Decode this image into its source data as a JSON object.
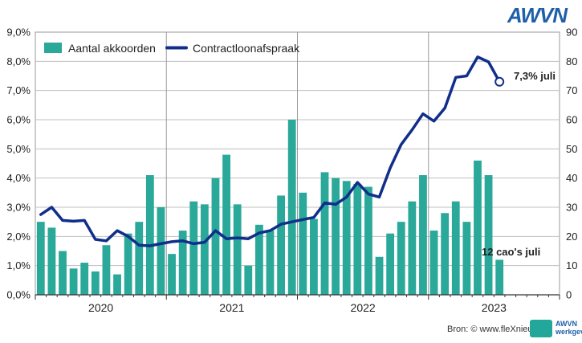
{
  "brand": {
    "logo_text": "AWVN",
    "small_logo_text": "AWVN",
    "small_logo_sub": "werkgevers",
    "color_logo": "#1f5fa8"
  },
  "source_label": "Bron: © www.fleXnieuws.nl",
  "chart_data": {
    "type": "bar+line",
    "legend": {
      "bar_label": "Aantal akkoorden",
      "line_label": "Contractloonafspraak",
      "placement": "top-left"
    },
    "colors": {
      "bar": "#2aa89a",
      "line": "#102f8a",
      "grid": "#bfbfbf"
    },
    "left_axis": {
      "min": 0,
      "max": 9,
      "ticks": [
        "0,0%",
        "1,0%",
        "2,0%",
        "3,0%",
        "4,0%",
        "5,0%",
        "6,0%",
        "7,0%",
        "8,0%",
        "9,0%"
      ]
    },
    "right_axis": {
      "min": 0,
      "max": 90,
      "ticks": [
        "0",
        "10",
        "20",
        "30",
        "40",
        "50",
        "60",
        "70",
        "80",
        "90"
      ]
    },
    "years": [
      "2020",
      "2021",
      "2022",
      "2023"
    ],
    "months_per_year": 12,
    "bar_values": [
      25,
      23,
      15,
      9,
      11,
      8,
      17,
      7,
      21,
      25,
      41,
      30,
      14,
      22,
      32,
      31,
      40,
      48,
      31,
      10,
      24,
      22,
      34,
      60,
      35,
      26,
      42,
      40,
      39,
      38,
      37,
      13,
      21,
      25,
      32,
      41,
      22,
      28,
      32,
      25,
      46,
      41,
      12
    ],
    "line_values": [
      2.75,
      3.0,
      2.55,
      2.52,
      2.55,
      1.9,
      1.85,
      2.2,
      2.0,
      1.7,
      1.68,
      1.75,
      1.82,
      1.85,
      1.75,
      1.8,
      2.2,
      1.92,
      1.95,
      1.92,
      2.12,
      2.2,
      2.42,
      2.5,
      2.58,
      2.65,
      3.15,
      3.1,
      3.35,
      3.85,
      3.45,
      3.35,
      4.35,
      5.15,
      5.65,
      6.2,
      5.95,
      6.4,
      7.45,
      7.5,
      8.15,
      7.98,
      7.3
    ],
    "annotations": {
      "line_last": "7,3% juli",
      "bar_last": "12 cao's juli"
    }
  }
}
